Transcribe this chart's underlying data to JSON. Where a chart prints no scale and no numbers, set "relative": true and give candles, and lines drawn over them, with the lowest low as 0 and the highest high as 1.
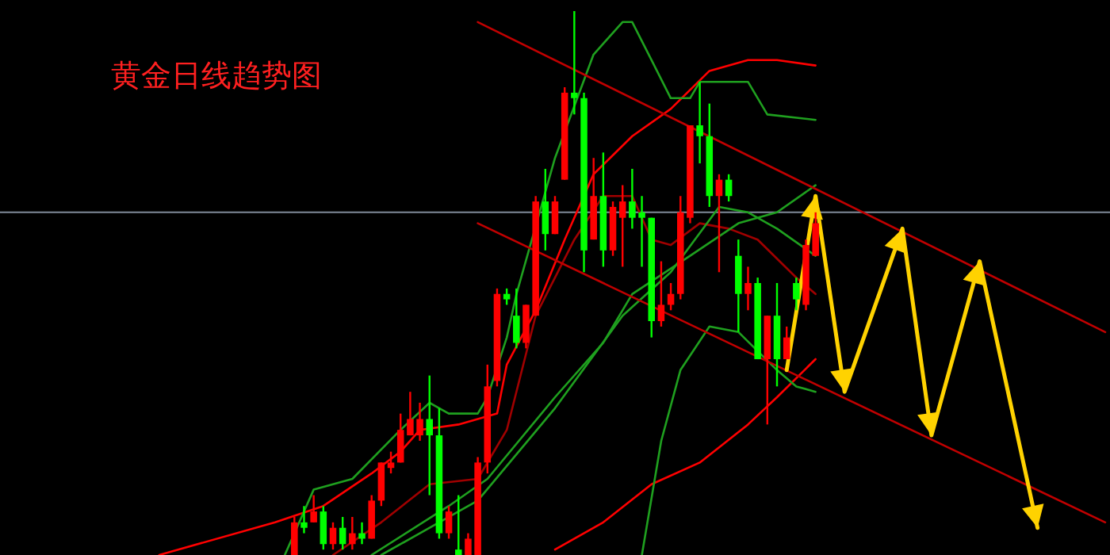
{
  "chart_data": {
    "type": "candlestick",
    "title": "黄金日线趋势图",
    "relative": true,
    "categories": [
      null,
      null,
      null,
      null,
      null,
      null,
      null,
      null,
      null,
      null,
      null,
      null,
      null,
      null,
      null,
      null,
      null,
      null,
      null,
      null,
      null,
      null,
      null,
      null,
      null,
      null,
      null,
      null,
      null,
      null,
      null,
      null,
      null,
      null,
      null,
      null,
      null,
      null,
      null,
      null,
      null,
      null,
      null,
      null,
      null,
      null,
      null,
      null,
      null,
      null,
      null,
      null,
      null,
      null,
      null,
      null,
      null,
      null,
      null,
      null,
      null,
      null,
      null,
      null,
      null,
      null,
      null,
      null,
      null,
      null,
      null,
      null,
      null,
      null,
      null,
      null,
      null,
      null,
      null,
      null,
      null,
      null,
      null,
      null,
      null,
      null,
      null,
      null,
      null,
      null,
      null,
      null,
      null,
      null,
      null,
      null,
      null,
      null,
      null,
      null,
      null,
      null,
      null,
      null,
      null,
      null,
      null,
      null,
      null,
      null,
      null,
      null,
      null,
      null,
      null
    ],
    "ohlc": [
      null,
      null,
      null,
      null,
      null,
      null,
      null,
      null,
      null,
      null,
      null,
      null,
      null,
      null,
      null,
      null,
      null,
      null,
      null,
      null,
      null,
      null,
      null,
      null,
      null,
      null,
      null,
      null,
      null,
      null,
      [
        0,
        0.07,
        0,
        0.06
      ],
      [
        0.06,
        0.09,
        0.04,
        0.05
      ],
      [
        0.06,
        0.11,
        0.06,
        0.08
      ],
      [
        0.08,
        0.09,
        0.01,
        0.02
      ],
      [
        0.02,
        0.06,
        0.01,
        0.05
      ],
      [
        0.05,
        0.07,
        0.01,
        0.02
      ],
      [
        0.02,
        0.07,
        0.01,
        0.04
      ],
      [
        0.04,
        0.06,
        0.02,
        0.03
      ],
      [
        0.03,
        0.11,
        0.03,
        0.1
      ],
      [
        0.1,
        0.17,
        0.09,
        0.17
      ],
      [
        0.16,
        0.19,
        0.15,
        0.17
      ],
      [
        0.17,
        0.26,
        0.17,
        0.23
      ],
      [
        0.22,
        0.3,
        0.22,
        0.25
      ],
      [
        0.22,
        0.28,
        0.21,
        0.25
      ],
      [
        0.25,
        0.33,
        0.11,
        0.22
      ],
      [
        0.22,
        0.27,
        0.03,
        0.04
      ],
      [
        0.04,
        0.09,
        0.03,
        0.08
      ],
      [
        0.01,
        0.11,
        0,
        0
      ],
      [
        0,
        0.04,
        0,
        0.03
      ],
      [
        0,
        0.18,
        0,
        0.17
      ],
      [
        0.17,
        0.35,
        0.15,
        0.31
      ],
      [
        0.32,
        0.49,
        0.31,
        0.48
      ],
      [
        0.48,
        0.49,
        0.46,
        0.47
      ],
      [
        0.44,
        0.49,
        0.38,
        0.39
      ],
      [
        0.39,
        0.46,
        0.38,
        0.46
      ],
      [
        0.44,
        0.66,
        0.44,
        0.65
      ],
      [
        0.65,
        0.71,
        0.56,
        0.59
      ],
      [
        0.59,
        0.66,
        0.59,
        0.65
      ],
      [
        0.69,
        0.86,
        0.69,
        0.85
      ],
      [
        0.85,
        1,
        0.81,
        0.84
      ],
      [
        0.84,
        0.85,
        0.52,
        0.56
      ],
      [
        0.58,
        0.73,
        0.58,
        0.66
      ],
      [
        0.66,
        0.74,
        0.53,
        0.56
      ],
      [
        0.56,
        0.65,
        0.55,
        0.64
      ],
      [
        0.62,
        0.68,
        0.53,
        0.65
      ],
      [
        0.65,
        0.71,
        0.6,
        0.62
      ],
      [
        0.63,
        0.66,
        0.53,
        0.62
      ],
      [
        0.62,
        0.62,
        0.4,
        0.43
      ],
      [
        0.43,
        0.54,
        0.42,
        0.46
      ],
      [
        0.46,
        0.5,
        0.45,
        0.48
      ],
      [
        0.48,
        0.66,
        0.47,
        0.63
      ],
      [
        0.62,
        0.79,
        0.61,
        0.79
      ],
      [
        0.79,
        0.87,
        0.72,
        0.77
      ],
      [
        0.77,
        0.83,
        0.64,
        0.66
      ],
      [
        0.66,
        0.7,
        0.52,
        0.69
      ],
      [
        0.69,
        0.7,
        0.65,
        0.66
      ],
      [
        0.55,
        0.58,
        0.41,
        0.48
      ],
      [
        0.48,
        0.53,
        0.45,
        0.5
      ],
      [
        0.5,
        0.51,
        0.36,
        0.36
      ],
      [
        0.36,
        0.44,
        0.24,
        0.44
      ],
      [
        0.44,
        0.5,
        0.31,
        0.36
      ],
      [
        0.36,
        0.42,
        0.36,
        0.4
      ],
      [
        0.5,
        0.51,
        0.45,
        0.47
      ],
      [
        0.46,
        0.58,
        0.45,
        0.57
      ],
      [
        0.55,
        0.63,
        0.55,
        0.61
      ],
      null,
      null,
      null,
      null,
      null,
      null,
      null,
      null,
      null,
      null,
      null,
      null,
      null,
      null,
      null,
      null,
      null,
      null,
      null,
      null,
      null,
      null,
      null,
      null,
      null,
      null,
      null,
      null,
      null,
      null
    ],
    "colors": [
      null,
      null,
      null,
      null,
      null,
      null,
      null,
      null,
      null,
      null,
      null,
      null,
      null,
      null,
      null,
      null,
      null,
      null,
      null,
      null,
      null,
      null,
      null,
      null,
      null,
      null,
      null,
      null,
      null,
      null,
      "#ff0000",
      "#00ff00",
      "#ff0000",
      "#00ff00",
      "#ff0000",
      "#00ff00",
      "#ff0000",
      "#00ff00",
      "#ff0000",
      "#ff0000",
      "#ff0000",
      "#ff0000",
      "#ff0000",
      "#ff0000",
      "#00ff00",
      "#00ff00",
      "#ff0000",
      "#00ff00",
      "#ff0000",
      "#ff0000",
      "#ff0000",
      "#ff0000",
      "#00ff00",
      "#00ff00",
      "#ff0000",
      "#ff0000",
      "#00ff00",
      "#ff0000",
      "#ff0000",
      "#00ff00",
      "#00ff00",
      "#ff0000",
      "#00ff00",
      "#ff0000",
      "#ff0000",
      "#00ff00",
      "#00ff00",
      "#00ff00",
      "#ff0000",
      "#ff0000",
      "#ff0000",
      "#ff0000",
      "#00ff00",
      "#00ff00",
      "#ff0000",
      "#00ff00",
      "#00ff00",
      "#ff0000",
      "#00ff00",
      "#ff0000",
      "#00ff00",
      "#ff0000",
      "#00ff00",
      "#ff0000",
      "#ff0000",
      null,
      null,
      null,
      null,
      null,
      null,
      null,
      null,
      null,
      null,
      null,
      null,
      null,
      null,
      null,
      null,
      null,
      null,
      null,
      null,
      null,
      null,
      null,
      null,
      null,
      null,
      null,
      null,
      null,
      null
    ],
    "ref_lines": [
      {
        "axis": "y",
        "value": 0.63,
        "color": "#7f8a99"
      }
    ],
    "series": [
      {
        "type": "line",
        "color": "#ff0000",
        "values": [
          null,
          null,
          null,
          null,
          null,
          null,
          null,
          null,
          null,
          null,
          null,
          null,
          null,
          null,
          null,
          null,
          0,
          null,
          null,
          null,
          null,
          null,
          null,
          null,
          null,
          null,
          null,
          null,
          0.06,
          null,
          null,
          null,
          null,
          0.09,
          null,
          null,
          null,
          null,
          0.15,
          null,
          null,
          0.19,
          null,
          0.23,
          null,
          null,
          null,
          0.24,
          null,
          null,
          null,
          0.26,
          0.35,
          null,
          null,
          0.45,
          null,
          null,
          0.58,
          null,
          null,
          0.7,
          null,
          null,
          null,
          0.77,
          null,
          null,
          null,
          0.82,
          null,
          null,
          null,
          0.89,
          null,
          null,
          null,
          0.91,
          null,
          null,
          0.91,
          null,
          null,
          null,
          0.9,
          null,
          null,
          null,
          null,
          null,
          null,
          null,
          null,
          null,
          null,
          null,
          null,
          null,
          null,
          null,
          null,
          null,
          null,
          null,
          null,
          null,
          null,
          null,
          null,
          null,
          null,
          null,
          null,
          null,
          null
        ]
      },
      {
        "type": "line",
        "color": "#ff0000",
        "values": [
          null,
          null,
          null,
          null,
          null,
          null,
          null,
          null,
          null,
          null,
          null,
          null,
          null,
          null,
          null,
          null,
          null,
          null,
          null,
          null,
          null,
          null,
          null,
          null,
          null,
          null,
          null,
          null,
          null,
          null,
          null,
          null,
          null,
          null,
          null,
          null,
          null,
          null,
          null,
          null,
          null,
          null,
          null,
          null,
          null,
          null,
          null,
          null,
          null,
          null,
          null,
          null,
          null,
          null,
          null,
          null,
          null,
          0.01,
          null,
          null,
          null,
          null,
          0.06,
          null,
          null,
          null,
          null,
          0.13,
          null,
          null,
          null,
          null,
          0.17,
          null,
          null,
          null,
          null,
          0.24,
          null,
          null,
          0.29,
          null,
          null,
          null,
          0.36,
          null,
          null,
          null,
          null,
          null,
          null,
          null,
          null,
          null,
          null,
          null,
          null,
          null,
          null,
          null,
          null,
          null,
          null,
          null,
          null,
          null,
          null,
          null,
          null,
          null,
          null,
          null,
          null,
          null,
          null
        ]
      },
      {
        "type": "line",
        "color": "#a00000",
        "values": [
          null,
          null,
          null,
          null,
          null,
          null,
          null,
          null,
          null,
          null,
          null,
          null,
          null,
          null,
          null,
          null,
          null,
          null,
          null,
          null,
          null,
          null,
          null,
          null,
          null,
          null,
          null,
          null,
          null,
          null,
          null,
          null,
          null,
          null,
          0,
          null,
          null,
          null,
          null,
          0.06,
          null,
          null,
          null,
          null,
          0.13,
          null,
          null,
          null,
          null,
          0.14,
          null,
          null,
          0.23,
          null,
          null,
          0.44,
          null,
          null,
          null,
          0.58,
          null,
          null,
          0.66,
          null,
          null,
          0.66,
          null,
          0.58,
          null,
          0.57,
          null,
          null,
          0.61,
          null,
          null,
          0.6,
          null,
          null,
          0.58,
          null,
          null,
          null,
          0.51,
          null,
          0.48,
          null,
          null,
          null,
          null,
          null,
          null,
          null,
          null,
          null,
          null,
          null,
          null,
          null,
          null,
          null,
          null,
          null,
          null,
          null,
          null,
          null,
          null,
          null,
          null,
          null,
          null,
          null,
          null,
          null,
          null
        ]
      },
      {
        "type": "line",
        "color": "#1fa01f",
        "values": [
          null,
          null,
          null,
          null,
          null,
          null,
          null,
          null,
          null,
          null,
          null,
          null,
          null,
          null,
          null,
          null,
          null,
          null,
          null,
          null,
          null,
          null,
          null,
          null,
          null,
          null,
          null,
          null,
          null,
          0,
          null,
          null,
          0.12,
          null,
          null,
          null,
          0.14,
          null,
          null,
          null,
          null,
          0.23,
          null,
          null,
          0.28,
          null,
          0.26,
          null,
          null,
          0.26,
          0.29,
          null,
          0.4,
          0.48,
          null,
          null,
          null,
          0.73,
          null,
          null,
          null,
          0.92,
          null,
          null,
          0.98,
          0.98,
          null,
          0.91,
          null,
          0.84,
          null,
          0.84,
          0.87,
          null,
          null,
          null,
          null,
          0.87,
          null,
          0.81,
          null,
          null,
          null,
          null,
          0.8,
          null,
          null,
          null,
          null,
          null,
          null,
          null,
          null,
          null,
          null,
          null,
          null,
          null,
          null,
          null,
          null,
          null,
          null,
          null,
          null,
          null,
          null,
          null,
          null,
          null,
          null,
          null,
          null,
          null,
          null
        ]
      },
      {
        "type": "line",
        "color": "#1fa01f",
        "values": [
          null,
          null,
          null,
          null,
          null,
          null,
          null,
          null,
          null,
          null,
          null,
          null,
          null,
          null,
          null,
          null,
          null,
          null,
          null,
          null,
          null,
          null,
          null,
          null,
          null,
          null,
          null,
          null,
          null,
          null,
          null,
          null,
          null,
          null,
          null,
          null,
          null,
          null,
          null,
          null,
          null,
          null,
          null,
          null,
          null,
          null,
          null,
          null,
          null,
          null,
          null,
          null,
          null,
          null,
          null,
          null,
          null,
          null,
          null,
          null,
          null,
          null,
          null,
          null,
          null,
          null,
          0,
          null,
          0.21,
          null,
          0.34,
          null,
          null,
          0.42,
          null,
          null,
          0.41,
          null,
          null,
          null,
          0.34,
          null,
          0.31,
          null,
          0.3,
          null,
          null,
          null,
          null,
          null,
          null,
          null,
          null,
          null,
          null,
          null,
          null,
          null,
          null,
          null,
          null,
          null,
          null,
          null,
          null,
          null,
          null,
          null,
          null,
          null,
          null,
          null,
          null,
          null,
          null
        ]
      },
      {
        "type": "line",
        "color": "#1fa01f",
        "values": [
          null,
          null,
          null,
          null,
          null,
          null,
          null,
          null,
          null,
          null,
          null,
          null,
          null,
          null,
          null,
          null,
          null,
          null,
          null,
          null,
          null,
          null,
          null,
          null,
          null,
          null,
          null,
          null,
          null,
          null,
          null,
          null,
          null,
          null,
          null,
          null,
          null,
          null,
          0,
          null,
          null,
          null,
          null,
          null,
          null,
          null,
          0.09,
          null,
          null,
          null,
          0.14,
          null,
          null,
          null,
          null,
          null,
          null,
          0.29,
          null,
          null,
          null,
          null,
          0.39,
          null,
          null,
          0.48,
          null,
          null,
          null,
          null,
          null,
          0.55,
          null,
          null,
          null,
          null,
          0.61,
          null,
          null,
          null,
          0.63,
          null,
          null,
          null,
          0.68,
          null,
          null,
          null,
          null,
          null,
          null,
          null,
          null,
          null,
          null,
          null,
          null,
          null,
          null,
          null,
          null,
          null,
          null,
          null,
          null,
          null,
          null,
          null,
          null,
          null,
          null,
          null,
          null,
          null,
          null
        ]
      },
      {
        "type": "line",
        "color": "#1fa01f",
        "values": [
          null,
          null,
          null,
          null,
          null,
          null,
          null,
          null,
          null,
          null,
          null,
          null,
          null,
          null,
          null,
          null,
          null,
          null,
          null,
          null,
          null,
          null,
          null,
          null,
          null,
          null,
          null,
          null,
          null,
          null,
          null,
          null,
          null,
          null,
          null,
          null,
          null,
          null,
          null,
          0,
          null,
          null,
          null,
          null,
          null,
          null,
          null,
          null,
          null,
          0.1,
          null,
          null,
          null,
          null,
          null,
          null,
          null,
          0.27,
          null,
          null,
          null,
          null,
          null,
          null,
          0.44,
          null,
          null,
          null,
          null,
          0.52,
          null,
          null,
          null,
          null,
          0.64,
          null,
          null,
          0.63,
          null,
          null,
          0.6,
          null,
          null,
          null,
          0.55,
          null,
          null,
          null,
          null,
          null,
          null,
          null,
          null,
          null,
          null,
          null,
          null,
          null,
          null,
          null,
          null,
          null,
          null,
          null,
          null,
          null,
          null,
          null,
          null,
          null,
          null,
          null,
          null,
          null,
          null
        ]
      },
      {
        "type": "line",
        "color": "#c00000",
        "values": [
          null,
          null,
          null,
          null,
          null,
          null,
          null,
          null,
          null,
          null,
          null,
          null,
          null,
          null,
          null,
          null,
          null,
          null,
          null,
          null,
          null,
          null,
          null,
          null,
          null,
          null,
          null,
          null,
          null,
          null,
          null,
          null,
          null,
          null,
          null,
          null,
          null,
          null,
          null,
          null,
          null,
          null,
          null,
          null,
          null,
          null,
          null,
          null,
          null,
          0.98,
          null,
          null,
          null,
          null,
          null,
          null,
          null,
          null,
          null,
          null,
          null,
          null,
          null,
          null,
          null,
          null,
          null,
          null,
          null,
          null,
          null,
          null,
          null,
          null,
          null,
          null,
          null,
          null,
          null,
          null,
          null,
          null,
          null,
          null,
          null,
          null,
          null,
          null,
          null,
          null,
          null,
          null,
          null,
          null,
          null,
          null,
          null,
          null,
          null,
          null,
          null,
          null,
          null,
          null,
          null,
          null,
          null,
          null,
          null,
          null,
          null,
          null,
          null,
          null,
          0.41
        ]
      },
      {
        "type": "line",
        "color": "#c00000",
        "values": [
          null,
          null,
          null,
          null,
          null,
          null,
          null,
          null,
          null,
          null,
          null,
          null,
          null,
          null,
          null,
          null,
          null,
          null,
          null,
          null,
          null,
          null,
          null,
          null,
          null,
          null,
          null,
          null,
          null,
          null,
          null,
          null,
          null,
          null,
          null,
          null,
          null,
          null,
          null,
          null,
          null,
          null,
          null,
          null,
          null,
          null,
          null,
          null,
          null,
          0.61,
          null,
          null,
          null,
          null,
          null,
          null,
          null,
          null,
          null,
          null,
          null,
          null,
          null,
          null,
          null,
          null,
          null,
          null,
          null,
          null,
          null,
          null,
          null,
          null,
          null,
          null,
          null,
          null,
          null,
          null,
          null,
          null,
          null,
          null,
          null,
          null,
          null,
          null,
          null,
          null,
          null,
          null,
          null,
          null,
          null,
          null,
          null,
          null,
          null,
          null,
          null,
          null,
          null,
          null,
          null,
          null,
          null,
          null,
          null,
          null,
          null,
          null,
          null,
          null,
          0.06
        ]
      },
      {
        "type": "line",
        "color": "#ffd200",
        "values": [
          null,
          null,
          null,
          null,
          null,
          null,
          null,
          null,
          null,
          null,
          null,
          null,
          null,
          null,
          null,
          null,
          null,
          null,
          null,
          null,
          null,
          null,
          null,
          null,
          null,
          null,
          null,
          null,
          null,
          null,
          null,
          null,
          null,
          null,
          null,
          null,
          null,
          null,
          null,
          null,
          null,
          null,
          null,
          null,
          null,
          null,
          null,
          null,
          null,
          null,
          null,
          null,
          null,
          null,
          null,
          null,
          null,
          null,
          null,
          null,
          null,
          null,
          null,
          null,
          null,
          null,
          null,
          null,
          null,
          null,
          null,
          null,
          null,
          null,
          null,
          null,
          null,
          null,
          null,
          null,
          null,
          0.34,
          null,
          null,
          0.66,
          null,
          null,
          0.3,
          null,
          null,
          null,
          null,
          null,
          0.6,
          null,
          null,
          0.22,
          null,
          null,
          null,
          null,
          0.54,
          null,
          null,
          null,
          null,
          null,
          0.05,
          null,
          null,
          null,
          null,
          null,
          null,
          null
        ]
      }
    ]
  }
}
